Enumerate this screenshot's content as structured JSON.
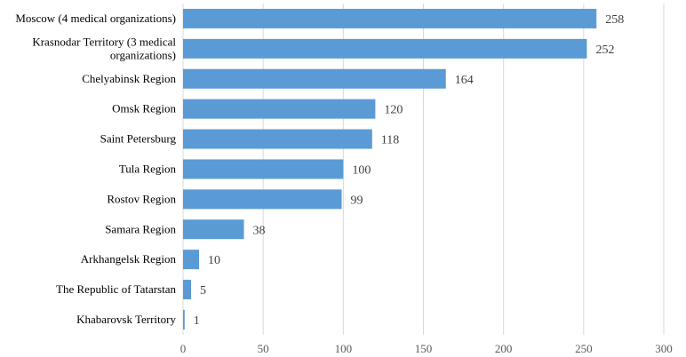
{
  "chart_data": {
    "type": "bar",
    "orientation": "horizontal",
    "categories": [
      [
        "Moscow (4 medical organizations)"
      ],
      [
        "Krasnodar Territory (3 medical",
        "organizations)"
      ],
      [
        "Chelyabinsk Region"
      ],
      [
        "Omsk Region"
      ],
      [
        "Saint Petersburg"
      ],
      [
        "Tula Region"
      ],
      [
        "Rostov Region"
      ],
      [
        "Samara Region"
      ],
      [
        "Arkhangelsk Region"
      ],
      [
        "The Republic of Tatarstan"
      ],
      [
        "Khabarovsk Territory"
      ]
    ],
    "values": [
      258,
      252,
      164,
      120,
      118,
      100,
      99,
      38,
      10,
      5,
      1
    ],
    "xlim": [
      0,
      300
    ],
    "xticks": [
      0,
      50,
      100,
      150,
      200,
      250,
      300
    ],
    "grid": "vertical",
    "legend": "none",
    "bar_color": "#5B9BD5",
    "grid_color": "#D9D9D9",
    "title": "",
    "xlabel": "",
    "ylabel": ""
  }
}
